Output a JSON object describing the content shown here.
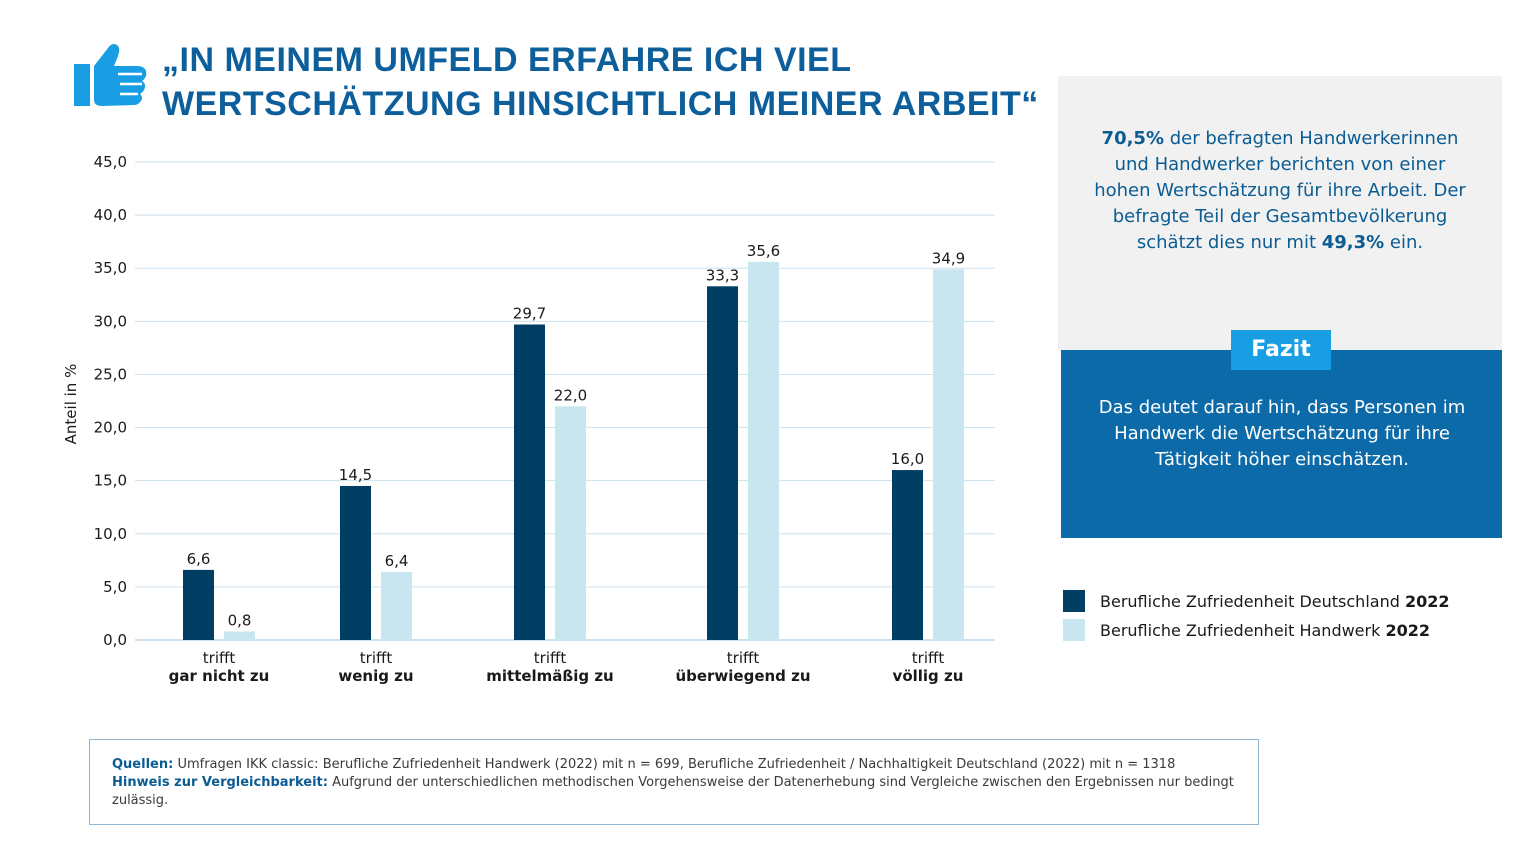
{
  "title": {
    "line1": "„In meinem Umfeld erfahre ich viel",
    "line2": "Wertschätzung hinsichtlich meiner Arbeit“"
  },
  "icons": {
    "thumb": "thumbs-up-icon"
  },
  "colors": {
    "dark": "#003f63",
    "light": "#c8e6f0",
    "accent": "#0d6aa8",
    "badge": "#1a9ee3",
    "grid": "#cde3ee"
  },
  "chart_data": {
    "type": "bar",
    "ylabel": "Anteil in %",
    "ylim": [
      0,
      45
    ],
    "yticks": [
      0,
      5,
      10,
      15,
      20,
      25,
      30,
      35,
      40,
      45
    ],
    "ytick_labels": [
      "0,0",
      "5,0",
      "10,0",
      "15,0",
      "20,0",
      "25,0",
      "30,0",
      "35,0",
      "40,0",
      "45,0"
    ],
    "grid": true,
    "categories": [
      {
        "line1": "trifft",
        "line2": "gar nicht zu"
      },
      {
        "line1": "trifft",
        "line2": "wenig zu"
      },
      {
        "line1": "trifft",
        "line2": "mittelmäßig zu"
      },
      {
        "line1": "trifft",
        "line2": "überwiegend zu"
      },
      {
        "line1": "trifft",
        "line2": "völlig zu"
      }
    ],
    "series": [
      {
        "name": "Berufliche Zufriedenheit Deutschland 2022",
        "color": "#003f63",
        "values": [
          6.6,
          14.5,
          29.7,
          33.3,
          16.0
        ],
        "labels": [
          "6,6",
          "14,5",
          "29,7",
          "33,3",
          "16,0"
        ]
      },
      {
        "name": "Berufliche Zufriedenheit Handwerk 2022",
        "color": "#c8e6f0",
        "values": [
          0.8,
          6.4,
          22.0,
          35.6,
          34.9
        ],
        "labels": [
          "0,8",
          "6,4",
          "22,0",
          "35,6",
          "34,9"
        ]
      }
    ]
  },
  "info": {
    "highlight1": "70,5%",
    "text1": " der befragten Handwerkerinnen und Handwerker berichten von einer hohen Wertschätzung für ihre Arbeit. Der befragte Teil der Gesamtbevölkerung schätzt dies nur mit ",
    "highlight2": "49,3%",
    "text2": " ein."
  },
  "fazit": {
    "badge": "Fazit",
    "text": "Das deutet darauf hin, dass Personen im Handwerk die Wertschätzung für ihre Tätigkeit höher einschätzen."
  },
  "legend": [
    {
      "label": "Berufliche Zufriedenheit Deutschland ",
      "year": "2022",
      "color": "#003f63"
    },
    {
      "label": "Berufliche Zufriedenheit Handwerk ",
      "year": "2022",
      "color": "#c8e6f0"
    }
  ],
  "sources": {
    "label1": "Quellen:",
    "text1": " Umfragen IKK classic: Berufliche Zufriedenheit Handwerk (2022) mit n = 699, Berufliche Zufriedenheit / Nachhaltigkeit Deutschland (2022) mit n = 1318",
    "label2": "Hinweis zur Vergleichbarkeit:",
    "text2": " Aufgrund der unterschiedlichen methodischen Vorgehensweise der Datenerhebung sind Vergleiche zwischen den Ergebnissen nur bedingt zulässig."
  }
}
